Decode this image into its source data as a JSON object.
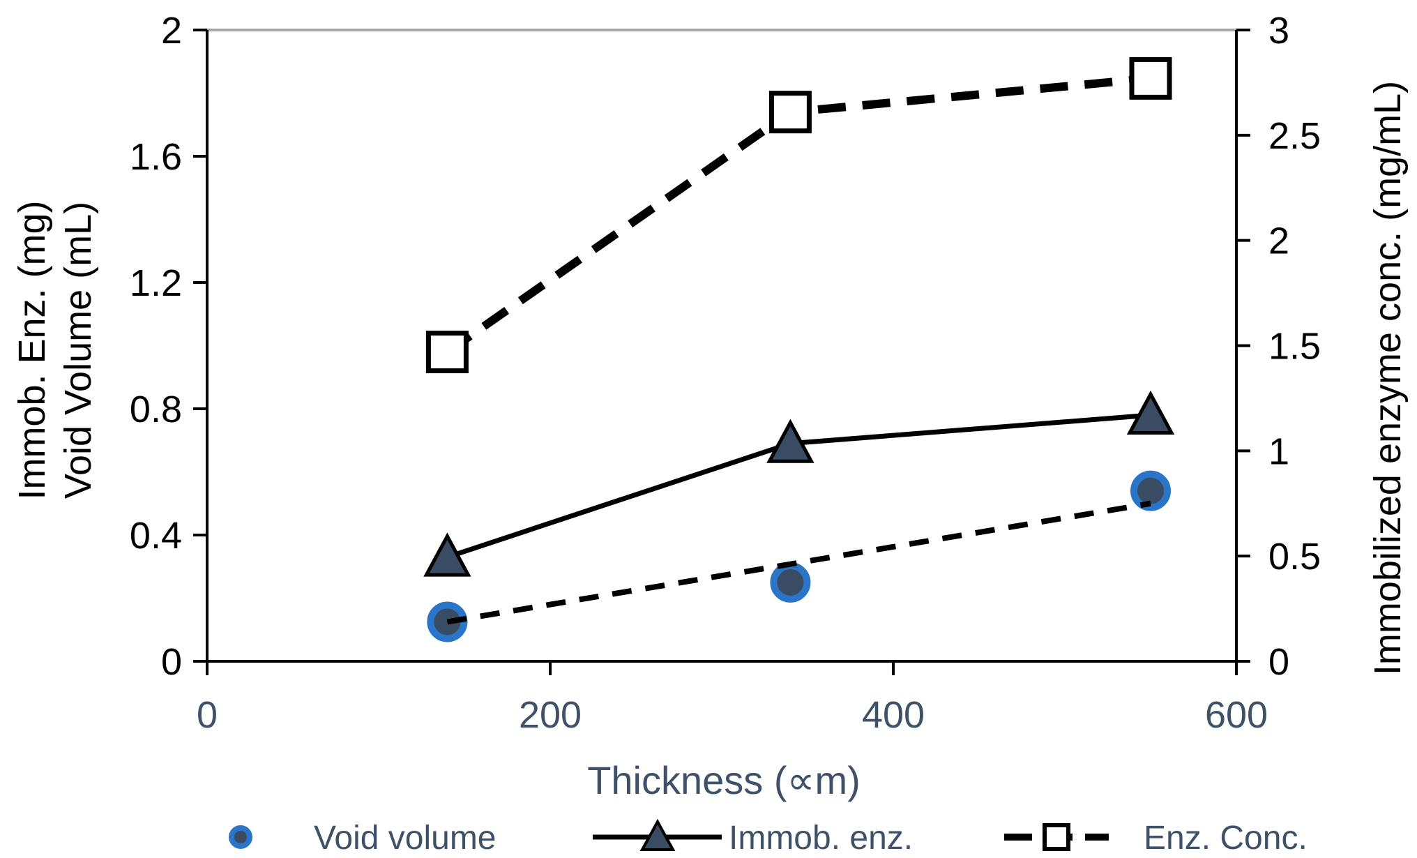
{
  "chart_data": {
    "type": "line",
    "title": "",
    "xlabel": "Thickness (∝m)",
    "ylabel_left_lines": [
      "Immob. Enz. (mg)",
      "Void Volume (mL)"
    ],
    "ylabel_right": "Immobilized enzyme conc. (mg/mL)",
    "xlim": [
      0,
      600
    ],
    "ylim_left": [
      0,
      2
    ],
    "ylim_right": [
      0,
      3
    ],
    "x_ticks": [
      "0",
      "200",
      "400",
      "600"
    ],
    "x_tick_values": [
      0,
      200,
      400,
      600
    ],
    "y_left_ticks": [
      "0",
      "0.4",
      "0.8",
      "1.2",
      "1.6",
      "2"
    ],
    "y_left_tick_values": [
      0,
      0.4,
      0.8,
      1.2,
      1.6,
      2
    ],
    "y_right_ticks": [
      "0",
      "0.5",
      "1",
      "1.5",
      "2",
      "2.5",
      "3"
    ],
    "y_right_tick_values": [
      0,
      0.5,
      1,
      1.5,
      2,
      2.5,
      3
    ],
    "grid": false,
    "legend_position": "bottom",
    "series": [
      {
        "name": "Void volume",
        "axis": "left",
        "marker": "circle",
        "marker_color": "#3a4c63",
        "marker_edge": "#2a75c8",
        "points": [
          [
            140,
            0.125
          ],
          [
            340,
            0.25
          ],
          [
            550,
            0.54
          ]
        ],
        "trend": {
          "style": "dashed",
          "from": [
            140,
            0.125
          ],
          "to": [
            550,
            0.5
          ]
        }
      },
      {
        "name": "Immob. enz.",
        "axis": "left",
        "marker": "triangle",
        "marker_color": "#3a4c63",
        "line_style": "solid",
        "points": [
          [
            140,
            0.33
          ],
          [
            340,
            0.69
          ],
          [
            550,
            0.78
          ]
        ]
      },
      {
        "name": "Enz. Conc.",
        "axis": "right",
        "marker": "square",
        "marker_color": "#ffffff",
        "line_style": "dashed",
        "points": [
          [
            140,
            1.47
          ],
          [
            340,
            2.61
          ],
          [
            550,
            2.77
          ]
        ]
      }
    ],
    "legend": [
      {
        "label": "Void volume",
        "marker": "circle"
      },
      {
        "label": "Immob. enz.",
        "marker": "triangle",
        "line_style": "solid"
      },
      {
        "label": "Enz. Conc.",
        "marker": "square",
        "line_style": "dashed"
      }
    ],
    "top_border_color": "#a6a6a6"
  }
}
